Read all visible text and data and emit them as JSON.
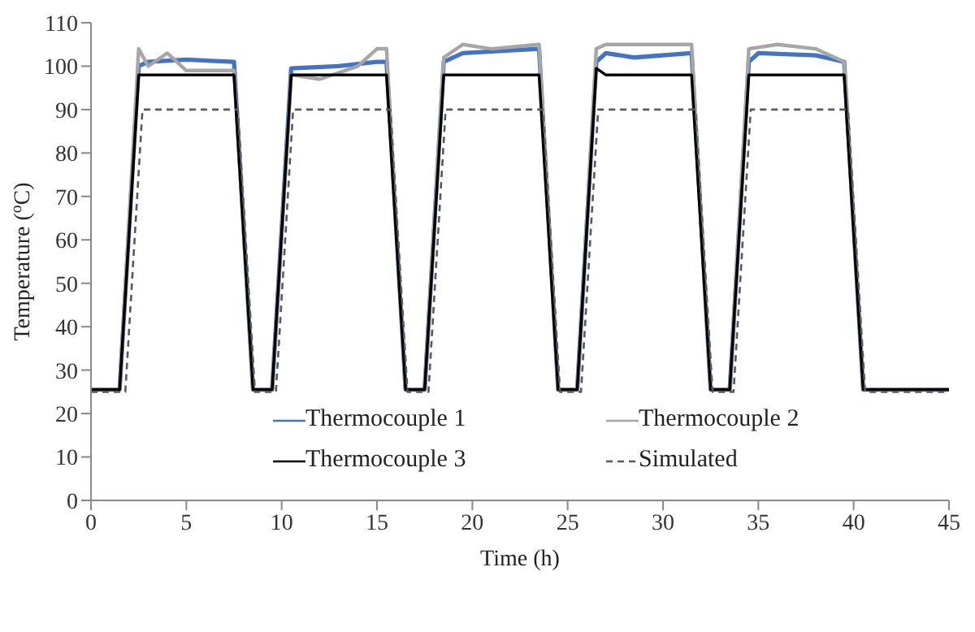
{
  "chart_data": {
    "type": "line",
    "xlabel": "Time (h)",
    "ylabel": "Temperature ($^{o}$C)",
    "xlim": [
      0,
      45
    ],
    "xticks": [
      0,
      5,
      10,
      15,
      20,
      25,
      30,
      35,
      40,
      45
    ],
    "ylim": [
      0,
      110
    ],
    "yticks": [
      0,
      10,
      20,
      30,
      40,
      50,
      60,
      70,
      80,
      90,
      100,
      110
    ],
    "grid": false,
    "legend": "bottom",
    "marker": "none",
    "series": [
      {
        "name": "Thermocouple 1",
        "color": "#4472c4",
        "line_style": "solid",
        "x": [
          0,
          1.5,
          2.5,
          3,
          5,
          7.5,
          8.5,
          9.5,
          10.5,
          13,
          15,
          15.5,
          16.5,
          17.5,
          18.5,
          19.5,
          23.5,
          24.5,
          25.5,
          26.5,
          27,
          28.5,
          31.5,
          32.5,
          33.5,
          34.5,
          35,
          38,
          39.5,
          40.5,
          45
        ],
        "values": [
          25.5,
          25.5,
          100,
          101,
          101.5,
          101,
          25.5,
          25.5,
          99.5,
          100,
          101,
          101,
          25.5,
          25.5,
          101,
          103,
          104,
          25.5,
          25.5,
          101,
          103,
          102,
          103,
          25.5,
          25.5,
          101,
          103,
          102.5,
          101,
          25.5,
          25.5
        ]
      },
      {
        "name": "Thermocouple 2",
        "color": "#a6a6a6",
        "line_style": "solid",
        "x": [
          0,
          1.5,
          2.5,
          3,
          4,
          5,
          7.5,
          8.5,
          9.5,
          10.5,
          12,
          14,
          15,
          15.5,
          16.5,
          17.5,
          18.5,
          19.5,
          21,
          23.5,
          24.5,
          25.5,
          26.5,
          27,
          31.5,
          32.5,
          33.5,
          34.5,
          36,
          38,
          39,
          39.5,
          40.5,
          45
        ],
        "values": [
          25.5,
          25.5,
          104,
          100,
          103,
          99,
          99,
          25.5,
          25.5,
          98,
          97,
          100,
          104,
          104,
          25.5,
          25.5,
          102,
          105,
          104,
          105,
          25.5,
          25.5,
          104,
          105,
          105,
          25.5,
          25.5,
          104,
          105,
          104,
          102,
          101,
          25.5,
          25.5
        ]
      },
      {
        "name": "Thermocouple 3",
        "color": "#000000",
        "line_style": "solid",
        "x": [
          0,
          1.5,
          2.5,
          7.5,
          8.5,
          9.5,
          10.5,
          15.5,
          16.5,
          17.5,
          18.5,
          23.5,
          24.5,
          25.5,
          26.5,
          27,
          31.5,
          32.5,
          33.5,
          34.5,
          39.5,
          40.5,
          45
        ],
        "values": [
          25.5,
          25.5,
          98,
          98,
          25.5,
          25.5,
          98,
          98,
          25.5,
          25.5,
          98,
          98,
          25.5,
          25.5,
          99.5,
          98,
          98,
          25.5,
          25.5,
          98,
          98,
          25.5,
          25.5
        ]
      },
      {
        "name": "Simulated",
        "color": "#595959",
        "line_style": "dashed",
        "x": [
          0,
          1.8,
          2.7,
          7.7,
          8.6,
          9.7,
          10.6,
          15.7,
          16.6,
          17.7,
          18.6,
          23.7,
          24.6,
          25.7,
          26.6,
          31.7,
          32.6,
          33.7,
          34.6,
          39.7,
          40.6,
          45
        ],
        "values": [
          25,
          25,
          90,
          90,
          25,
          25,
          90,
          90,
          25,
          25,
          90,
          90,
          25,
          25,
          90,
          90,
          25,
          25,
          90,
          90,
          25,
          25
        ]
      }
    ]
  }
}
